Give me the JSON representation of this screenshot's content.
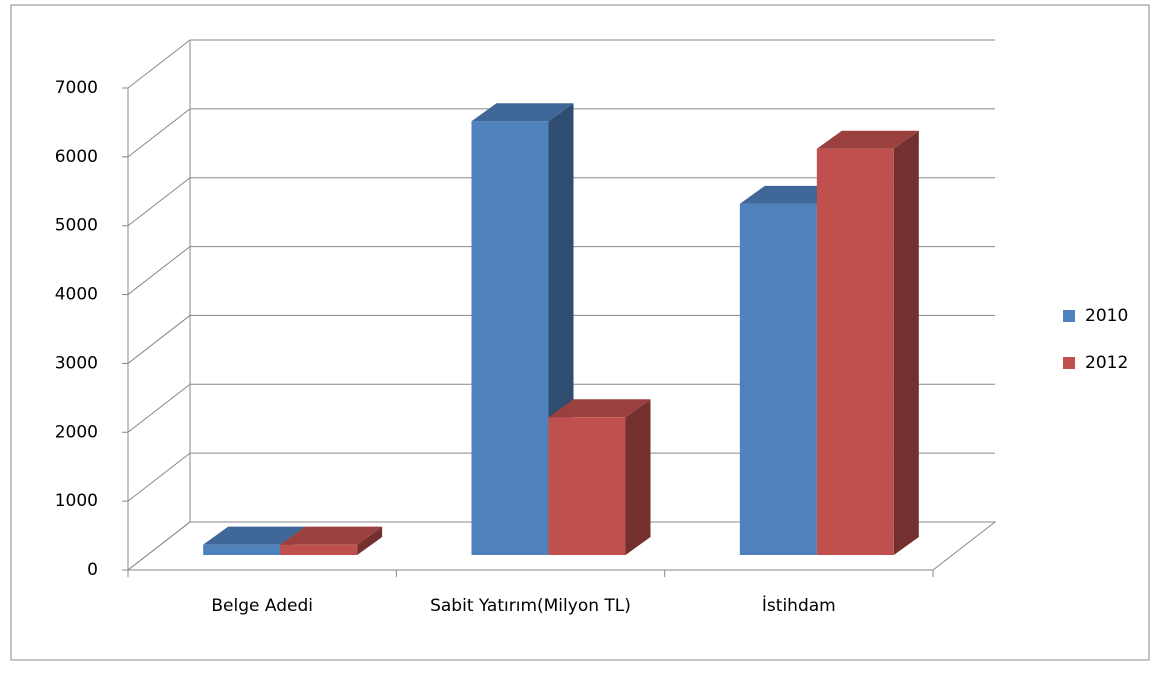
{
  "chart_data": {
    "type": "bar3d",
    "categories": [
      "Belge Adedi",
      "Sabit Yatırım(Milyon TL)",
      "İstihdam"
    ],
    "series": [
      {
        "name": "2010",
        "color": "#4f81bd",
        "values": [
          150,
          6300,
          5100
        ]
      },
      {
        "name": "2012",
        "color": "#c0504d",
        "values": [
          150,
          2000,
          5900
        ]
      }
    ],
    "ylim": [
      0,
      7000
    ],
    "yticks": [
      0,
      1000,
      2000,
      3000,
      4000,
      5000,
      6000,
      7000
    ],
    "grid": true,
    "legend": "right"
  }
}
